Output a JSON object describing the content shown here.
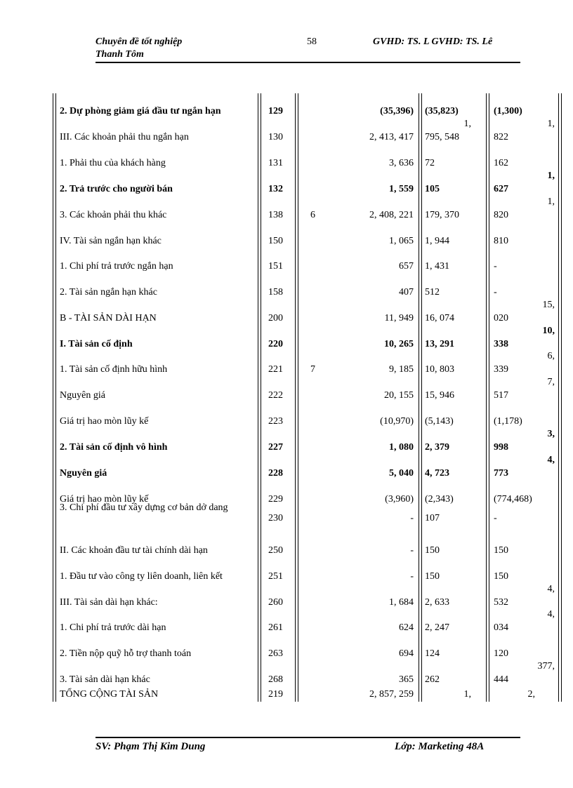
{
  "header": {
    "left_line1": "Chuyên đề tốt nghiệp",
    "left_line2": "Thanh Tôm",
    "page": "58",
    "right": "GVHD: TS. L GVHD: TS. Lê"
  },
  "table": {
    "rows": [
      {
        "cells": [
          "2. Dự phòng giảm giá đầu tư ngắn hạn",
          "129",
          "",
          "(35,396)",
          "(35,823)",
          "(1,300)"
        ],
        "bold": true
      },
      {
        "cells": [
          "III. Các khoản phải thu ngắn hạn",
          "130",
          "",
          "2, 413, 417",
          "795, 548",
          "822"
        ],
        "wrap5": "1,",
        "wrap6": "1,"
      },
      {
        "cells": [
          "1. Phải thu của khách hàng",
          "131",
          "",
          "3, 636",
          "72",
          "162"
        ]
      },
      {
        "cells": [
          "2. Trả trước cho người bán",
          "132",
          "",
          "1, 559",
          "105",
          "627"
        ],
        "wrap6": "1,",
        "bold": true
      },
      {
        "cells": [
          "3. Các khoản phải thu khác",
          "138",
          "6",
          "2, 408, 221",
          "179, 370",
          "820"
        ],
        "wrap6": "1,"
      },
      {
        "cells": [
          "IV. Tài sản ngắn hạn khác",
          "150",
          "",
          "1, 065",
          "1, 944",
          "810"
        ]
      },
      {
        "cells": [
          "1. Chi phí trả trước ngắn hạn",
          "151",
          "",
          "657",
          "1, 431",
          "-"
        ]
      },
      {
        "cells": [
          "2. Tài sản ngắn hạn khác",
          "158",
          "",
          "407",
          "512",
          "-"
        ]
      },
      {
        "cells": [
          "B - TÀI SẢN DÀI HẠN",
          "200",
          "",
          "11, 949",
          "16, 074",
          "020"
        ],
        "wrap6": "15,"
      },
      {
        "cells": [
          "I. Tài sản cố định",
          "220",
          "",
          "10, 265",
          "13, 291",
          "338"
        ],
        "wrap6": "10,",
        "bold": true
      },
      {
        "cells": [
          "1. Tài sản cố định hữu hình",
          "221",
          "7",
          "9, 185",
          "10, 803",
          "339"
        ],
        "wrap6": "6,"
      },
      {
        "cells": [
          "Nguyên giá",
          "222",
          "",
          "20, 155",
          "15, 946",
          "517"
        ],
        "wrap6": "7,"
      },
      {
        "cells": [
          "Giá trị hao mòn lũy kế",
          "223",
          "",
          "(10,970)",
          "(5,143)",
          "(1,178)"
        ]
      },
      {
        "cells": [
          "2. Tài sản cố định vô hình",
          "227",
          "",
          "1, 080",
          "2, 379",
          "998"
        ],
        "wrap6": "3,",
        "bold": true
      },
      {
        "cells": [
          "Nguyên giá",
          "228",
          "",
          "5, 040",
          "4, 723",
          "773"
        ],
        "wrap6": "4,",
        "bold": true
      },
      {
        "cells": [
          "Giá trị hao mòn lũy kế",
          "229",
          "",
          "(3,960)",
          "(2,343)",
          "(774,468)"
        ]
      },
      {
        "cells": [
          "3. Chi phí đầu tư xây dựng cơ bản dở dang",
          "230",
          "",
          "-",
          "107",
          "-"
        ]
      },
      {
        "cells": [
          "II. Các khoản đầu tư tài chính dài hạn",
          "250",
          "",
          "-",
          "150",
          "150"
        ]
      },
      {
        "cells": [
          "1. Đầu tư vào công ty liên doanh, liên kết",
          "251",
          "",
          "-",
          "150",
          "150"
        ]
      },
      {
        "cells": [
          "III. Tài sản dài hạn khác:",
          "260",
          "",
          "1, 684",
          "2, 633",
          "532"
        ],
        "wrap6": "4,"
      },
      {
        "cells": [
          "1. Chi phí trả trước dài hạn",
          "261",
          "",
          "624",
          "2, 247",
          "034"
        ],
        "wrap6": "4,"
      },
      {
        "cells": [
          "2. Tiền nộp quỹ hỗ trợ thanh toán",
          "263",
          "",
          "694",
          "124",
          "120"
        ]
      },
      {
        "cells": [
          "3. Tài sản dài hạn khác",
          "268",
          "",
          "365",
          "262",
          "444"
        ],
        "wrap6": "377,"
      },
      {
        "cells": [
          "TỔNG CỘNG TÀI SẢN",
          "219",
          "",
          "2, 857, 259"
        ],
        "wrap5": "1,",
        "wrap6": "2,"
      }
    ]
  },
  "footer": {
    "left": "SV: Phạm Thị Kim Dung",
    "right": "Lớp: Marketing 48A"
  }
}
